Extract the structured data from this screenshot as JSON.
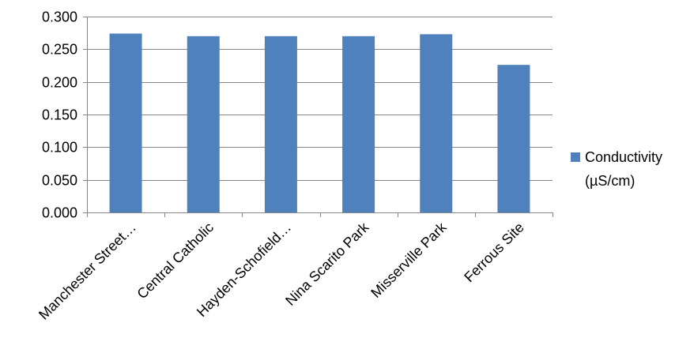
{
  "chart_data": {
    "type": "bar",
    "categories": [
      "Manchester Street…",
      "Central Catholic",
      "Hayden-Schofield…",
      "Nina Scarito Park",
      "Misserville Park",
      "Ferrous Site"
    ],
    "series": [
      {
        "name": "Conductivity (µS/cm)",
        "name_lines": [
          "Conductivity",
          "(µS/cm)"
        ],
        "values": [
          0.274,
          0.27,
          0.27,
          0.27,
          0.273,
          0.226
        ],
        "color": "#4F81BD"
      }
    ],
    "ytick_labels": [
      "0.000",
      "0.050",
      "0.100",
      "0.150",
      "0.200",
      "0.250",
      "0.300"
    ],
    "ylim": [
      0,
      0.3
    ],
    "ytick_step": 0.05,
    "grid": true,
    "legend_position": "right",
    "title": "",
    "xlabel": "",
    "ylabel": ""
  }
}
